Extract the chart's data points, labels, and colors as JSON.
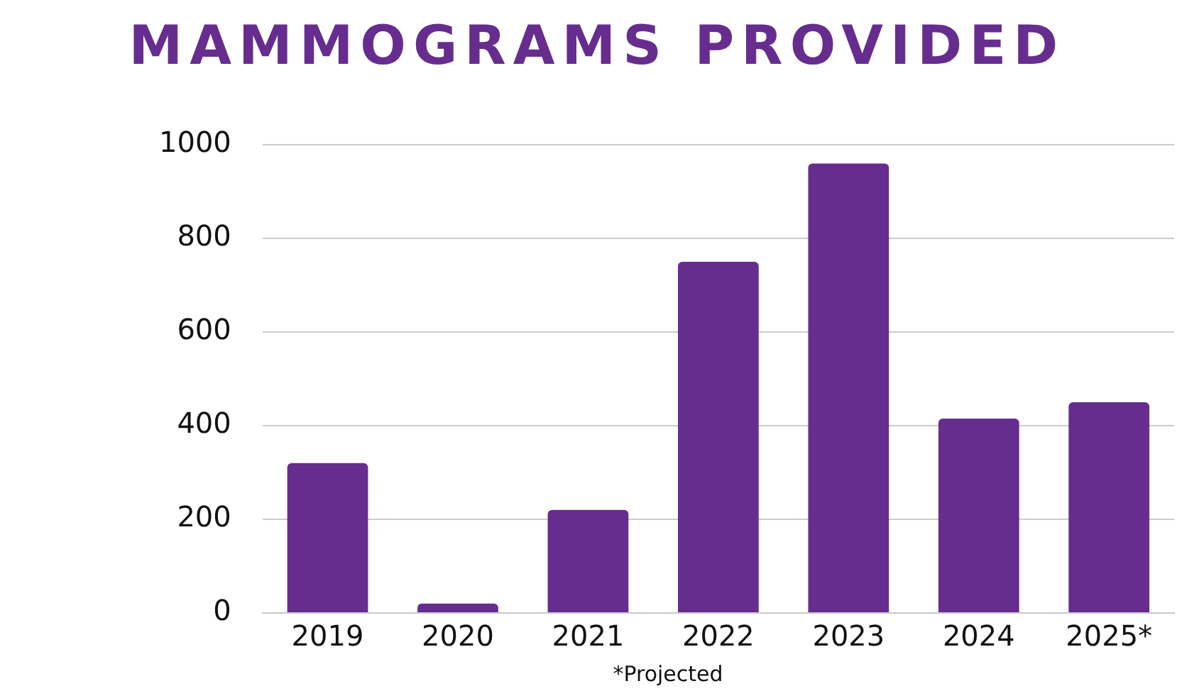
{
  "chart_data": {
    "type": "bar",
    "title": "MAMMOGRAMS PROVIDED",
    "categories": [
      "2019",
      "2020",
      "2021",
      "2022",
      "2023",
      "2024",
      "2025*"
    ],
    "values": [
      320,
      20,
      220,
      750,
      960,
      415,
      450
    ],
    "color": "#662d8f",
    "ylim": [
      0,
      1000
    ],
    "yticks": [
      0,
      200,
      400,
      600,
      800,
      1000
    ],
    "grid": "y",
    "annotations": [
      "*Projected"
    ]
  }
}
